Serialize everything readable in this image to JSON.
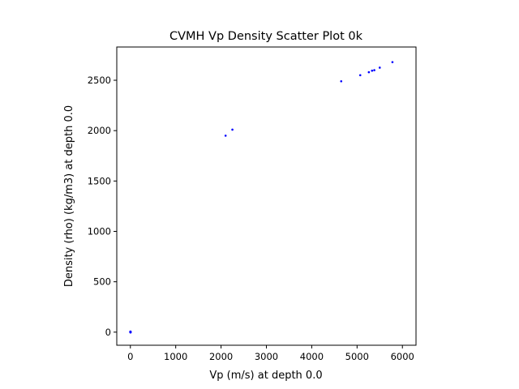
{
  "chart_data": {
    "type": "scatter",
    "title": "CVMH Vp Density Scatter Plot 0k",
    "xlabel": "Vp (m/s) at depth 0.0",
    "ylabel": "Density (rho) (kg/m3) at depth 0.0",
    "xlim": [
      -300,
      6300
    ],
    "ylim": [
      -130,
      2830
    ],
    "xticks": [
      0,
      1000,
      2000,
      3000,
      4000,
      5000,
      6000
    ],
    "yticks": [
      0,
      500,
      1000,
      1500,
      2000,
      2500
    ],
    "grid": false,
    "marker_color": "#0000ff",
    "series": [
      {
        "values": [
          [
            0,
            0
          ],
          [
            0,
            5
          ],
          [
            5,
            0
          ],
          [
            5,
            5
          ],
          [
            -3,
            3
          ],
          [
            3,
            -3
          ],
          [
            2100,
            1950
          ],
          [
            2250,
            2010
          ],
          [
            4650,
            2490
          ],
          [
            5070,
            2550
          ],
          [
            5260,
            2580
          ],
          [
            5330,
            2595
          ],
          [
            5380,
            2600
          ],
          [
            5500,
            2625
          ],
          [
            5780,
            2680
          ]
        ]
      }
    ]
  }
}
